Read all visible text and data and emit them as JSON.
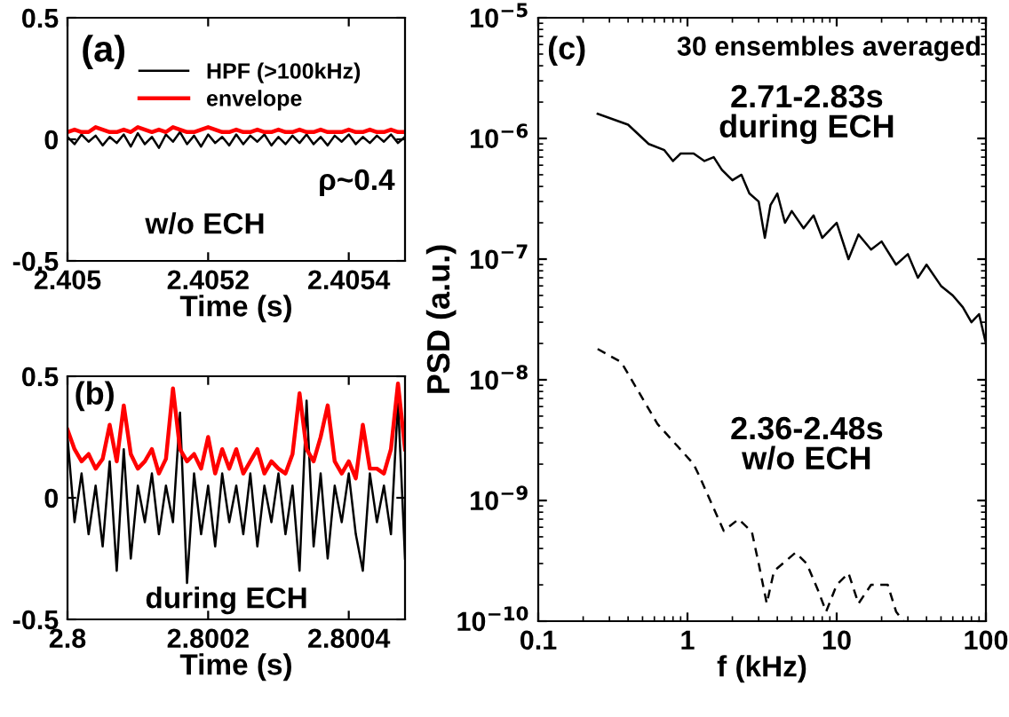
{
  "chart_data": [
    {
      "type": "line",
      "xlabel": "Time (s)",
      "xlim": [
        2.405,
        2.40548
      ],
      "xticks": [
        2.405,
        2.4052,
        2.4054
      ],
      "ylim": [
        -0.5,
        0.5
      ],
      "yticks": [
        -0.5,
        0,
        0.5
      ],
      "grid": false,
      "legend": "top right",
      "annotations": [
        "(a)",
        "ρ~0.4",
        "w/o ECH"
      ],
      "series": [
        {
          "name": "HPF (>100kHz)",
          "color": "#000000",
          "x": [
            2.405,
            2.40501,
            2.40502,
            2.40503,
            2.40504,
            2.40505,
            2.40506,
            2.40507,
            2.40508,
            2.40509,
            2.4051,
            2.40511,
            2.40512,
            2.40513,
            2.40514,
            2.40515,
            2.40516,
            2.40517,
            2.40518,
            2.40519,
            2.4052,
            2.40521,
            2.40522,
            2.40523,
            2.40524,
            2.40525,
            2.40526,
            2.40527,
            2.40528,
            2.40529,
            2.4053,
            2.40531,
            2.40532,
            2.40533,
            2.40534,
            2.40535,
            2.40536,
            2.40537,
            2.40538,
            2.40539,
            2.4054,
            2.40541,
            2.40542,
            2.40543,
            2.40544,
            2.40545,
            2.40546,
            2.40547,
            2.40548
          ],
          "values": [
            0.01,
            -0.02,
            0.02,
            -0.01,
            0.015,
            -0.025,
            0.01,
            -0.015,
            0.02,
            -0.03,
            0.025,
            -0.02,
            0.01,
            -0.035,
            0.02,
            -0.01,
            0.03,
            -0.02,
            0.015,
            -0.03,
            0.02,
            -0.015,
            0.01,
            -0.025,
            0.02,
            -0.02,
            0.015,
            -0.01,
            0.02,
            -0.025,
            0.01,
            -0.02,
            0.015,
            -0.015,
            0.02,
            -0.02,
            0.01,
            -0.025,
            0.015,
            -0.01,
            0.02,
            -0.02,
            0.01,
            -0.015,
            0.015,
            -0.01,
            0.02,
            -0.015,
            0.01
          ]
        },
        {
          "name": "envelope",
          "color": "#ff0000",
          "x": [
            2.405,
            2.40501,
            2.40502,
            2.40503,
            2.40504,
            2.40505,
            2.40506,
            2.40507,
            2.40508,
            2.40509,
            2.4051,
            2.40511,
            2.40512,
            2.40513,
            2.40514,
            2.40515,
            2.40516,
            2.40517,
            2.40518,
            2.40519,
            2.4052,
            2.40521,
            2.40522,
            2.40523,
            2.40524,
            2.40525,
            2.40526,
            2.40527,
            2.40528,
            2.40529,
            2.4053,
            2.40531,
            2.40532,
            2.40533,
            2.40534,
            2.40535,
            2.40536,
            2.40537,
            2.40538,
            2.40539,
            2.4054,
            2.40541,
            2.40542,
            2.40543,
            2.40544,
            2.40545,
            2.40546,
            2.40547,
            2.40548
          ],
          "values": [
            0.03,
            0.04,
            0.03,
            0.03,
            0.05,
            0.04,
            0.03,
            0.03,
            0.04,
            0.03,
            0.05,
            0.04,
            0.03,
            0.04,
            0.03,
            0.05,
            0.04,
            0.03,
            0.03,
            0.04,
            0.05,
            0.04,
            0.03,
            0.03,
            0.04,
            0.03,
            0.03,
            0.04,
            0.03,
            0.03,
            0.04,
            0.03,
            0.03,
            0.04,
            0.03,
            0.03,
            0.04,
            0.03,
            0.03,
            0.03,
            0.04,
            0.03,
            0.03,
            0.04,
            0.03,
            0.03,
            0.04,
            0.03,
            0.03
          ]
        }
      ]
    },
    {
      "type": "line",
      "xlabel": "Time (s)",
      "xlim": [
        2.8,
        2.80048
      ],
      "xticks": [
        2.8,
        2.8002,
        2.8004
      ],
      "ylim": [
        -0.5,
        0.5
      ],
      "yticks": [
        -0.5,
        0,
        0.5
      ],
      "grid": false,
      "annotations": [
        "(b)",
        "during ECH"
      ],
      "series": [
        {
          "color": "#000000",
          "x": [
            2.8,
            2.80001,
            2.80002,
            2.80003,
            2.80004,
            2.80005,
            2.80006,
            2.80007,
            2.80008,
            2.80009,
            2.8001,
            2.80011,
            2.80012,
            2.80013,
            2.80014,
            2.80015,
            2.80016,
            2.80017,
            2.80018,
            2.80019,
            2.8002,
            2.80021,
            2.80022,
            2.80023,
            2.80024,
            2.80025,
            2.80026,
            2.80027,
            2.80028,
            2.80029,
            2.8003,
            2.80031,
            2.80032,
            2.80033,
            2.80034,
            2.80035,
            2.80036,
            2.80037,
            2.80038,
            2.80039,
            2.8004,
            2.80041,
            2.80042,
            2.80043,
            2.80044,
            2.80045,
            2.80046,
            2.80047,
            2.80048
          ],
          "values": [
            0.25,
            -0.1,
            0.1,
            -0.15,
            0.05,
            -0.2,
            0.15,
            -0.3,
            0.2,
            -0.25,
            0.05,
            -0.1,
            0.1,
            -0.15,
            0.05,
            -0.1,
            0.35,
            -0.35,
            0.1,
            -0.15,
            0.05,
            -0.2,
            0.1,
            -0.1,
            0.05,
            -0.15,
            0.1,
            -0.2,
            0.05,
            -0.1,
            0.1,
            -0.15,
            0.05,
            -0.3,
            0.4,
            -0.2,
            0.1,
            -0.25,
            0.05,
            -0.1,
            0.1,
            -0.15,
            -0.3,
            0.1,
            -0.1,
            0.05,
            -0.15,
            0.4,
            -0.25
          ]
        },
        {
          "color": "#ff0000",
          "x": [
            2.8,
            2.80001,
            2.80002,
            2.80003,
            2.80004,
            2.80005,
            2.80006,
            2.80007,
            2.80008,
            2.80009,
            2.8001,
            2.80011,
            2.80012,
            2.80013,
            2.80014,
            2.80015,
            2.80016,
            2.80017,
            2.80018,
            2.80019,
            2.8002,
            2.80021,
            2.80022,
            2.80023,
            2.80024,
            2.80025,
            2.80026,
            2.80027,
            2.80028,
            2.80029,
            2.8003,
            2.80031,
            2.80032,
            2.80033,
            2.80034,
            2.80035,
            2.80036,
            2.80037,
            2.80038,
            2.80039,
            2.8004,
            2.80041,
            2.80042,
            2.80043,
            2.80044,
            2.80045,
            2.80046,
            2.80047,
            2.80048
          ],
          "values": [
            0.28,
            0.2,
            0.15,
            0.18,
            0.12,
            0.16,
            0.3,
            0.15,
            0.38,
            0.18,
            0.12,
            0.15,
            0.2,
            0.1,
            0.16,
            0.45,
            0.2,
            0.15,
            0.18,
            0.12,
            0.25,
            0.1,
            0.2,
            0.12,
            0.2,
            0.1,
            0.15,
            0.2,
            0.1,
            0.15,
            0.12,
            0.1,
            0.18,
            0.43,
            0.2,
            0.15,
            0.25,
            0.38,
            0.15,
            0.1,
            0.15,
            0.08,
            0.3,
            0.12,
            0.12,
            0.1,
            0.2,
            0.47,
            0.2
          ]
        }
      ]
    },
    {
      "type": "line",
      "log": "xy",
      "xlabel": "f (kHz)",
      "ylabel": "PSD (a.u.)",
      "xlim": [
        0.1,
        100
      ],
      "xticks": [
        0.1,
        1,
        10,
        100
      ],
      "ylim": [
        1e-10,
        1e-05
      ],
      "yticks": [
        {
          "value": 1e-10,
          "label": "10$^{−10}$"
        },
        {
          "value": 1e-09,
          "label": "10$^{−9}$"
        },
        {
          "value": 1e-08,
          "label": "10$^{−8}$"
        },
        {
          "value": 1e-07,
          "label": "10$^{−7}$"
        },
        {
          "value": 1e-06,
          "label": "10$^{−6}$"
        },
        {
          "value": 1e-05,
          "label": "10$^{−5}$"
        }
      ],
      "grid": false,
      "annotations": [
        "(c)",
        "30 ensembles averaged",
        "2.71-2.83s\nduring ECH",
        "2.36-2.48s\nw/o ECH"
      ],
      "series": [
        {
          "color": "#000000",
          "line_style": "solid",
          "x": [
            0.25,
            0.4,
            0.55,
            0.7,
            0.8,
            0.9,
            1.1,
            1.3,
            1.5,
            1.7,
            2,
            2.3,
            2.6,
            3,
            3.3,
            3.6,
            4,
            4.5,
            5,
            6,
            7,
            8,
            10,
            12,
            14,
            17,
            20,
            25,
            30,
            35,
            40,
            50,
            60,
            70,
            80,
            90,
            100
          ],
          "values": [
            1.6e-06,
            1.3e-06,
            9e-07,
            8e-07,
            6.5e-07,
            7.5e-07,
            7.5e-07,
            6.5e-07,
            7e-07,
            5.5e-07,
            4.5e-07,
            5e-07,
            3.5e-07,
            3e-07,
            1.5e-07,
            2.8e-07,
            3.5e-07,
            2e-07,
            2.5e-07,
            1.8e-07,
            2.3e-07,
            1.5e-07,
            2e-07,
            1e-07,
            1.6e-07,
            1.2e-07,
            1.4e-07,
            9e-08,
            1.1e-07,
            7e-08,
            9e-08,
            6e-08,
            5e-08,
            4e-08,
            3e-08,
            3.5e-08,
            2e-08
          ]
        },
        {
          "color": "#000000",
          "line_style": "dashed",
          "x": [
            0.25,
            0.36,
            0.63,
            1.1,
            1.2,
            1.75,
            2.2,
            2.7,
            3,
            3.4,
            3.8,
            5.3,
            6.3,
            7.5,
            8.5,
            10,
            12,
            14,
            17,
            22,
            25,
            28
          ],
          "values": [
            1.8e-08,
            1.4e-08,
            4.3e-09,
            2e-09,
            1.6e-09,
            5.6e-10,
            7e-10,
            5.5e-10,
            3e-10,
            1.4e-10,
            2.6e-10,
            3.7e-10,
            3e-10,
            1.8e-10,
            1.2e-10,
            2e-10,
            2.5e-10,
            1.4e-10,
            2e-10,
            2e-10,
            1.2e-10,
            1e-10
          ]
        }
      ]
    }
  ]
}
